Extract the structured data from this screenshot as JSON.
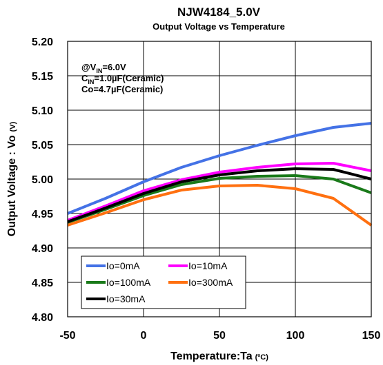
{
  "chart_data": {
    "type": "line",
    "title": "NJW4184_5.0V",
    "subtitle": "Output Voltage vs Temperature",
    "xlabel": "Temperature:Ta",
    "xlabel_unit": "(ºC)",
    "ylabel": "Output Voltage : Vo",
    "ylabel_unit": "(V)",
    "xlim": [
      -50,
      150
    ],
    "ylim": [
      4.8,
      5.2
    ],
    "x_ticks": [
      -50,
      0,
      50,
      100,
      150
    ],
    "x_tick_labels": [
      "-50",
      "0",
      "50",
      "100",
      "150"
    ],
    "y_ticks": [
      4.8,
      4.85,
      4.9,
      4.95,
      5.0,
      5.05,
      5.1,
      5.15,
      5.2
    ],
    "y_tick_labels": [
      "4.80",
      "4.85",
      "4.90",
      "4.95",
      "5.00",
      "5.05",
      "5.10",
      "5.15",
      "5.20"
    ],
    "grid": true,
    "legend_position": "bottom-left",
    "conditions": {
      "line1_prefix": "@V",
      "line1_sub": "IN",
      "line1_suffix": "=6.0V",
      "line2_prefix": "C",
      "line2_sub": "IN",
      "line2_suffix": "=1.0µF(Ceramic)",
      "line3": "Co=4.7µF(Ceramic)"
    },
    "x": [
      -50,
      -25,
      0,
      25,
      50,
      75,
      100,
      125,
      150
    ],
    "series": [
      {
        "name": "Io=0mA",
        "color": "#4472e6",
        "values": [
          4.95,
          4.972,
          4.996,
          5.017,
          5.034,
          5.049,
          5.063,
          5.075,
          5.081
        ]
      },
      {
        "name": "Io=10mA",
        "color": "#ff00ff",
        "values": [
          4.94,
          4.961,
          4.983,
          4.999,
          5.01,
          5.017,
          5.022,
          5.023,
          5.012
        ]
      },
      {
        "name": "Io=100mA",
        "color": "#1a7a1a",
        "values": [
          4.937,
          4.956,
          4.976,
          4.992,
          5.001,
          5.004,
          5.005,
          5.0,
          4.98
        ]
      },
      {
        "name": "Io=300mA",
        "color": "#ff7010",
        "values": [
          4.933,
          4.951,
          4.97,
          4.984,
          4.99,
          4.991,
          4.986,
          4.972,
          4.933
        ]
      },
      {
        "name": "Io=30mA",
        "color": "#000000",
        "values": [
          4.938,
          4.958,
          4.979,
          4.996,
          5.006,
          5.012,
          5.015,
          5.014,
          5.0
        ]
      }
    ]
  }
}
